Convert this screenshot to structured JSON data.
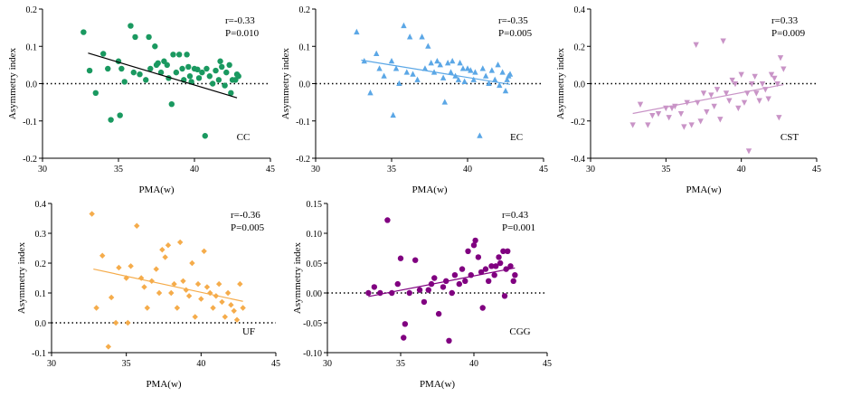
{
  "figure": {
    "background": "#ffffff"
  },
  "chart_data": [
    {
      "id": "CC",
      "type": "scatter",
      "marker": "circle",
      "color": "#1a9960",
      "label": "CC",
      "annotation_r": "r=-0.33",
      "annotation_p": "P=0.010",
      "xlabel": "PMA(w)",
      "ylabel": "Asymmetry index",
      "xlim": [
        30,
        45
      ],
      "ylim": [
        -0.2,
        0.2
      ],
      "xticks": [
        30,
        35,
        40,
        45
      ],
      "xtick_labels": [
        "30",
        "35",
        "40",
        "45"
      ],
      "yticks": [
        -0.2,
        -0.1,
        0.0,
        0.1,
        0.2
      ],
      "ytick_labels": [
        "-0.2",
        "-0.1",
        "0.0",
        "0.1",
        "0.2"
      ],
      "reference_line_y": 0,
      "fit_line": {
        "x": [
          33.0,
          42.8
        ],
        "y": [
          0.082,
          -0.038
        ]
      },
      "points": [
        [
          32.7,
          0.138
        ],
        [
          33.1,
          0.035
        ],
        [
          33.5,
          -0.025
        ],
        [
          34.0,
          0.08
        ],
        [
          34.3,
          0.04
        ],
        [
          34.5,
          -0.097
        ],
        [
          35.0,
          0.06
        ],
        [
          35.1,
          -0.085
        ],
        [
          35.2,
          0.04
        ],
        [
          35.4,
          0.005
        ],
        [
          35.8,
          0.155
        ],
        [
          36.0,
          0.03
        ],
        [
          36.1,
          0.125
        ],
        [
          36.4,
          0.025
        ],
        [
          36.8,
          0.01
        ],
        [
          37.0,
          0.125
        ],
        [
          37.1,
          0.04
        ],
        [
          37.4,
          0.1
        ],
        [
          37.5,
          0.05
        ],
        [
          37.6,
          0.055
        ],
        [
          37.8,
          0.03
        ],
        [
          38.0,
          0.06
        ],
        [
          38.2,
          0.05
        ],
        [
          38.3,
          0.015
        ],
        [
          38.5,
          -0.055
        ],
        [
          38.6,
          0.078
        ],
        [
          38.8,
          0.03
        ],
        [
          39.0,
          0.078
        ],
        [
          39.2,
          0.04
        ],
        [
          39.3,
          0.01
        ],
        [
          39.5,
          0.078
        ],
        [
          39.6,
          0.045
        ],
        [
          39.7,
          0.02
        ],
        [
          39.8,
          0.005
        ],
        [
          40.0,
          0.04
        ],
        [
          40.2,
          0.038
        ],
        [
          40.3,
          0.015
        ],
        [
          40.5,
          0.03
        ],
        [
          40.7,
          -0.14
        ],
        [
          40.8,
          0.04
        ],
        [
          41.0,
          0.02
        ],
        [
          41.2,
          0.0
        ],
        [
          41.4,
          0.035
        ],
        [
          41.6,
          0.01
        ],
        [
          41.7,
          0.06
        ],
        [
          41.8,
          0.045
        ],
        [
          42.0,
          -0.005
        ],
        [
          42.1,
          0.03
        ],
        [
          42.3,
          0.05
        ],
        [
          42.4,
          -0.025
        ],
        [
          42.5,
          0.01
        ],
        [
          42.7,
          0.01
        ],
        [
          42.8,
          0.025
        ],
        [
          42.9,
          0.02
        ]
      ]
    },
    {
      "id": "EC",
      "type": "scatter",
      "marker": "triangle-up",
      "color": "#5ba7e6",
      "label": "EC",
      "annotation_r": "r=-0.35",
      "annotation_p": "P=0.005",
      "xlabel": "PMA(w)",
      "ylabel": "Asymmetry index",
      "xlim": [
        30,
        45
      ],
      "ylim": [
        -0.2,
        0.2
      ],
      "xticks": [
        30,
        35,
        40,
        45
      ],
      "xtick_labels": [
        "30",
        "35",
        "40",
        "45"
      ],
      "yticks": [
        -0.2,
        -0.1,
        0.0,
        0.1,
        0.2
      ],
      "ytick_labels": [
        "-0.2",
        "-0.1",
        "0.0",
        "0.1",
        "0.2"
      ],
      "reference_line_y": 0,
      "fit_line": {
        "x": [
          33.0,
          42.8
        ],
        "y": [
          0.063,
          -0.002
        ]
      },
      "points": [
        [
          32.7,
          0.138
        ],
        [
          33.2,
          0.06
        ],
        [
          33.6,
          -0.025
        ],
        [
          34.0,
          0.08
        ],
        [
          34.2,
          0.04
        ],
        [
          34.5,
          0.02
        ],
        [
          35.0,
          0.06
        ],
        [
          35.1,
          -0.085
        ],
        [
          35.3,
          0.04
        ],
        [
          35.5,
          0.0
        ],
        [
          35.8,
          0.155
        ],
        [
          36.0,
          0.03
        ],
        [
          36.2,
          0.125
        ],
        [
          36.4,
          0.025
        ],
        [
          36.7,
          0.01
        ],
        [
          37.0,
          0.125
        ],
        [
          37.2,
          0.04
        ],
        [
          37.4,
          0.1
        ],
        [
          37.6,
          0.055
        ],
        [
          37.8,
          0.03
        ],
        [
          38.0,
          0.06
        ],
        [
          38.2,
          0.05
        ],
        [
          38.4,
          0.015
        ],
        [
          38.5,
          -0.05
        ],
        [
          38.7,
          0.055
        ],
        [
          38.9,
          0.03
        ],
        [
          39.0,
          0.06
        ],
        [
          39.2,
          0.02
        ],
        [
          39.4,
          0.01
        ],
        [
          39.5,
          0.055
        ],
        [
          39.7,
          0.04
        ],
        [
          39.8,
          0.005
        ],
        [
          40.0,
          0.04
        ],
        [
          40.2,
          0.035
        ],
        [
          40.4,
          0.01
        ],
        [
          40.5,
          0.03
        ],
        [
          40.8,
          -0.14
        ],
        [
          41.0,
          0.04
        ],
        [
          41.2,
          0.02
        ],
        [
          41.4,
          0.0
        ],
        [
          41.6,
          0.035
        ],
        [
          41.8,
          0.01
        ],
        [
          42.0,
          0.05
        ],
        [
          42.1,
          -0.005
        ],
        [
          42.3,
          0.03
        ],
        [
          42.5,
          -0.02
        ],
        [
          42.6,
          0.01
        ],
        [
          42.7,
          0.02
        ],
        [
          42.8,
          0.025
        ]
      ]
    },
    {
      "id": "CST",
      "type": "scatter",
      "marker": "triangle-down",
      "color": "#c994c7",
      "label": "CST",
      "annotation_r": "r=0.33",
      "annotation_p": "P=0.009",
      "xlabel": "PMA(w)",
      "ylabel": "Asymmetry index",
      "xlim": [
        30,
        45
      ],
      "ylim": [
        -0.4,
        0.4
      ],
      "xticks": [
        30,
        35,
        40,
        45
      ],
      "xtick_labels": [
        "30",
        "35",
        "40",
        "45"
      ],
      "yticks": [
        -0.4,
        -0.2,
        0.0,
        0.2,
        0.4
      ],
      "ytick_labels": [
        "-0.4",
        "-0.2",
        "0.0",
        "0.2",
        "0.4"
      ],
      "reference_line_y": 0,
      "fit_line": {
        "x": [
          32.8,
          42.8
        ],
        "y": [
          -0.16,
          -0.005
        ]
      },
      "points": [
        [
          32.8,
          -0.22
        ],
        [
          33.3,
          -0.11
        ],
        [
          33.8,
          -0.22
        ],
        [
          34.1,
          -0.17
        ],
        [
          34.5,
          -0.16
        ],
        [
          35.0,
          -0.13
        ],
        [
          35.2,
          -0.18
        ],
        [
          35.4,
          -0.13
        ],
        [
          35.6,
          -0.12
        ],
        [
          36.0,
          -0.16
        ],
        [
          36.2,
          -0.23
        ],
        [
          36.4,
          -0.1
        ],
        [
          36.7,
          -0.22
        ],
        [
          37.0,
          0.21
        ],
        [
          37.1,
          -0.1
        ],
        [
          37.3,
          -0.2
        ],
        [
          37.5,
          -0.05
        ],
        [
          37.7,
          -0.15
        ],
        [
          38.0,
          -0.06
        ],
        [
          38.2,
          -0.12
        ],
        [
          38.4,
          -0.03
        ],
        [
          38.6,
          -0.19
        ],
        [
          38.8,
          0.23
        ],
        [
          39.0,
          -0.05
        ],
        [
          39.2,
          -0.09
        ],
        [
          39.4,
          0.02
        ],
        [
          39.6,
          0.0
        ],
        [
          39.8,
          -0.13
        ],
        [
          40.0,
          0.05
        ],
        [
          40.2,
          -0.1
        ],
        [
          40.4,
          -0.05
        ],
        [
          40.5,
          -0.36
        ],
        [
          40.7,
          0.0
        ],
        [
          40.9,
          0.04
        ],
        [
          41.0,
          -0.05
        ],
        [
          41.2,
          -0.09
        ],
        [
          41.4,
          0.0
        ],
        [
          41.6,
          -0.03
        ],
        [
          41.8,
          -0.08
        ],
        [
          42.0,
          0.05
        ],
        [
          42.2,
          0.03
        ],
        [
          42.4,
          0.0
        ],
        [
          42.5,
          -0.18
        ],
        [
          42.6,
          0.14
        ],
        [
          42.8,
          0.08
        ]
      ]
    },
    {
      "id": "UF",
      "type": "scatter",
      "marker": "diamond",
      "color": "#f5ac4b",
      "label": "UF",
      "annotation_r": "r=-0.36",
      "annotation_p": "P=0.005",
      "xlabel": "PMA(w)",
      "ylabel": "Asymmetry index",
      "xlim": [
        30,
        45
      ],
      "ylim": [
        -0.1,
        0.4
      ],
      "xticks": [
        30,
        35,
        40,
        45
      ],
      "xtick_labels": [
        "30",
        "35",
        "40",
        "45"
      ],
      "yticks": [
        -0.1,
        0.0,
        0.1,
        0.2,
        0.3,
        0.4
      ],
      "ytick_labels": [
        "-0.1",
        "0.0",
        "0.1",
        "0.2",
        "0.3",
        "0.4"
      ],
      "reference_line_y": 0,
      "fit_line": {
        "x": [
          32.8,
          42.8
        ],
        "y": [
          0.18,
          0.072
        ]
      },
      "points": [
        [
          32.7,
          0.365
        ],
        [
          33.0,
          0.05
        ],
        [
          33.4,
          0.225
        ],
        [
          33.8,
          -0.08
        ],
        [
          34.0,
          0.085
        ],
        [
          34.3,
          0.0
        ],
        [
          34.5,
          0.185
        ],
        [
          35.0,
          0.15
        ],
        [
          35.1,
          0.0
        ],
        [
          35.3,
          0.19
        ],
        [
          35.7,
          0.325
        ],
        [
          36.0,
          0.15
        ],
        [
          36.2,
          0.12
        ],
        [
          36.4,
          0.05
        ],
        [
          36.7,
          0.14
        ],
        [
          37.0,
          0.18
        ],
        [
          37.2,
          0.1
        ],
        [
          37.4,
          0.245
        ],
        [
          37.6,
          0.22
        ],
        [
          37.8,
          0.26
        ],
        [
          38.0,
          0.1
        ],
        [
          38.2,
          0.13
        ],
        [
          38.4,
          0.05
        ],
        [
          38.6,
          0.27
        ],
        [
          38.8,
          0.14
        ],
        [
          39.0,
          0.11
        ],
        [
          39.2,
          0.09
        ],
        [
          39.4,
          0.2
        ],
        [
          39.6,
          0.02
        ],
        [
          39.8,
          0.13
        ],
        [
          40.0,
          0.08
        ],
        [
          40.2,
          0.24
        ],
        [
          40.4,
          0.12
        ],
        [
          40.6,
          0.1
        ],
        [
          40.8,
          0.05
        ],
        [
          41.0,
          0.09
        ],
        [
          41.2,
          0.13
        ],
        [
          41.4,
          0.07
        ],
        [
          41.6,
          0.02
        ],
        [
          41.8,
          0.1
        ],
        [
          42.0,
          0.06
        ],
        [
          42.2,
          0.04
        ],
        [
          42.4,
          0.01
        ],
        [
          42.6,
          0.13
        ],
        [
          42.8,
          0.05
        ]
      ]
    },
    {
      "id": "CGG",
      "type": "scatter",
      "marker": "circle",
      "color": "#800080",
      "label": "CGG",
      "annotation_r": "r=0.43",
      "annotation_p": "P=0.001",
      "xlabel": "PMA(w)",
      "ylabel": "Asymmetry index",
      "xlim": [
        30,
        45
      ],
      "ylim": [
        -0.1,
        0.15
      ],
      "xticks": [
        30,
        35,
        40,
        45
      ],
      "xtick_labels": [
        "30",
        "35",
        "40",
        "45"
      ],
      "yticks": [
        -0.1,
        -0.05,
        0.0,
        0.05,
        0.1,
        0.15
      ],
      "ytick_labels": [
        "-0.10",
        "-0.05",
        "0.00",
        "0.05",
        "0.10",
        "0.15"
      ],
      "reference_line_y": 0,
      "fit_line": {
        "x": [
          32.8,
          42.8
        ],
        "y": [
          -0.006,
          0.042
        ]
      },
      "points": [
        [
          32.8,
          0.0
        ],
        [
          33.2,
          0.01
        ],
        [
          33.6,
          0.0
        ],
        [
          34.1,
          0.122
        ],
        [
          34.4,
          0.0
        ],
        [
          34.8,
          0.015
        ],
        [
          35.0,
          0.058
        ],
        [
          35.2,
          -0.075
        ],
        [
          35.3,
          -0.052
        ],
        [
          35.6,
          0.0
        ],
        [
          36.0,
          0.055
        ],
        [
          36.3,
          0.005
        ],
        [
          36.6,
          -0.015
        ],
        [
          36.9,
          0.005
        ],
        [
          37.1,
          0.015
        ],
        [
          37.3,
          0.025
        ],
        [
          37.6,
          -0.035
        ],
        [
          37.9,
          0.01
        ],
        [
          38.1,
          0.02
        ],
        [
          38.3,
          -0.08
        ],
        [
          38.5,
          0.0
        ],
        [
          38.7,
          0.03
        ],
        [
          39.0,
          0.015
        ],
        [
          39.2,
          0.04
        ],
        [
          39.4,
          0.02
        ],
        [
          39.6,
          0.07
        ],
        [
          39.8,
          0.03
        ],
        [
          40.0,
          0.08
        ],
        [
          40.1,
          0.088
        ],
        [
          40.3,
          0.06
        ],
        [
          40.5,
          0.035
        ],
        [
          40.6,
          -0.025
        ],
        [
          40.8,
          0.04
        ],
        [
          41.0,
          0.02
        ],
        [
          41.2,
          0.045
        ],
        [
          41.4,
          0.03
        ],
        [
          41.5,
          0.045
        ],
        [
          41.7,
          0.06
        ],
        [
          41.8,
          0.05
        ],
        [
          42.0,
          0.07
        ],
        [
          42.1,
          -0.005
        ],
        [
          42.2,
          0.04
        ],
        [
          42.3,
          0.07
        ],
        [
          42.5,
          0.045
        ],
        [
          42.7,
          0.02
        ],
        [
          42.8,
          0.03
        ]
      ]
    }
  ]
}
